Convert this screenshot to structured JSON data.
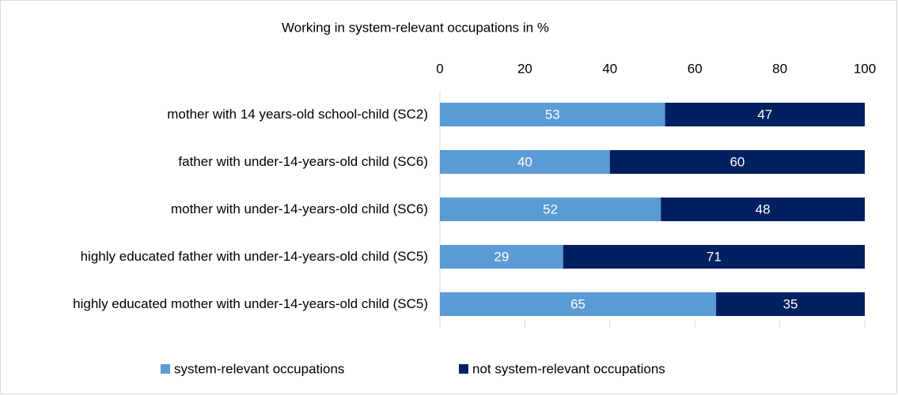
{
  "chart_data": {
    "type": "stacked_barh",
    "title": "Working in system-relevant occupations in %",
    "categories": [
      "mother with 14 years-old school-child (SC2)",
      "father with under-14-years-old child (SC6)",
      "mother with under-14-years-old child (SC6)",
      "highly educated father with under-14-years-old child (SC5)",
      "highly educated mother with under-14-years-old child (SC5)"
    ],
    "series": [
      {
        "name": "system-relevant occupations",
        "color": "#5b9bd5",
        "values": [
          53,
          40,
          52,
          29,
          65
        ]
      },
      {
        "name": "not system-relevant occupations",
        "color": "#002060",
        "values": [
          47,
          60,
          48,
          71,
          35
        ]
      }
    ],
    "xlim": [
      0,
      100
    ],
    "xticks": [
      0,
      20,
      40,
      60,
      80,
      100
    ],
    "legend": "bottom"
  }
}
